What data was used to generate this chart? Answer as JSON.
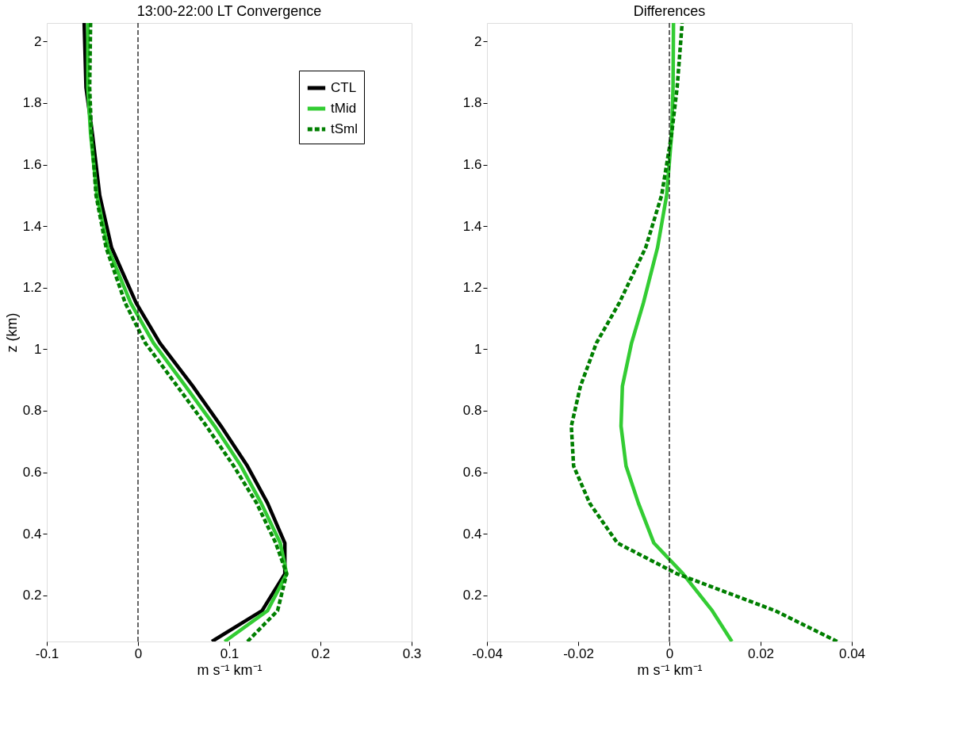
{
  "chart_data": [
    {
      "type": "line",
      "title": "13:00-22:00 LT  Convergence",
      "xlabel": "m s⁻¹ km⁻¹",
      "ylabel": "z (km)",
      "xlim": [
        -0.1,
        0.3
      ],
      "xticks": [
        -0.1,
        0,
        0.1,
        0.2,
        0.3
      ],
      "ylim": [
        0.05,
        2.06
      ],
      "yticks": [
        0.2,
        0.4,
        0.6,
        0.8,
        1,
        1.2,
        1.4,
        1.6,
        1.8,
        2
      ],
      "grid": false,
      "legend": "top right",
      "marker": "none",
      "ref_lines": [
        {
          "axis": "x",
          "value": 0,
          "color": "#000000",
          "line_style": "dashed"
        }
      ],
      "series": [
        {
          "name": "CTL",
          "color": "#000000",
          "line_style": "solid",
          "x": [
            0.081,
            0.136,
            0.161,
            0.161,
            0.142,
            0.12,
            0.091,
            0.06,
            0.024,
            -0.002,
            -0.029,
            -0.042,
            -0.05,
            -0.057,
            -0.059
          ],
          "values": [
            0.05,
            0.15,
            0.27,
            0.37,
            0.5,
            0.62,
            0.75,
            0.88,
            1.02,
            1.15,
            1.33,
            1.5,
            1.7,
            1.85,
            2.06
          ]
        },
        {
          "name": "tMid",
          "color": "#33cc33",
          "line_style": "solid",
          "x": [
            0.095,
            0.142,
            0.163,
            0.156,
            0.135,
            0.113,
            0.084,
            0.052,
            0.017,
            -0.008,
            -0.033,
            -0.045,
            -0.052,
            -0.055,
            -0.055
          ],
          "values": [
            0.05,
            0.15,
            0.27,
            0.37,
            0.5,
            0.62,
            0.75,
            0.88,
            1.02,
            1.15,
            1.33,
            1.5,
            1.7,
            1.85,
            2.06
          ]
        },
        {
          "name": "tSml",
          "color": "#007f00",
          "line_style": "dashed",
          "x": [
            0.12,
            0.153,
            0.163,
            0.151,
            0.13,
            0.105,
            0.075,
            0.043,
            0.008,
            -0.014,
            -0.035,
            -0.046,
            -0.051,
            -0.053,
            -0.052
          ],
          "values": [
            0.05,
            0.15,
            0.27,
            0.37,
            0.5,
            0.62,
            0.75,
            0.88,
            1.02,
            1.15,
            1.33,
            1.5,
            1.7,
            1.85,
            2.06
          ]
        }
      ]
    },
    {
      "type": "line",
      "title": "Differences",
      "xlabel": "m s⁻¹ km⁻¹",
      "xlim": [
        -0.04,
        0.04
      ],
      "xticks": [
        -0.04,
        -0.02,
        0,
        0.02,
        0.04
      ],
      "ylim": [
        0.05,
        2.06
      ],
      "yticks": [
        0.2,
        0.4,
        0.6,
        0.8,
        1,
        1.2,
        1.4,
        1.6,
        1.8,
        2
      ],
      "grid": false,
      "marker": "none",
      "ref_lines": [
        {
          "axis": "x",
          "value": 0,
          "color": "#000000",
          "line_style": "dashed"
        }
      ],
      "series": [
        {
          "color": "#33cc33",
          "line_style": "solid",
          "x": [
            0.0137,
            0.0094,
            0.003,
            -0.0034,
            -0.0068,
            -0.0095,
            -0.0106,
            -0.0103,
            -0.0083,
            -0.0057,
            -0.0026,
            -0.0006,
            0.0005,
            0.0008,
            0.0009
          ],
          "values": [
            0.05,
            0.15,
            0.27,
            0.37,
            0.5,
            0.62,
            0.75,
            0.88,
            1.02,
            1.15,
            1.33,
            1.5,
            1.7,
            1.85,
            2.06
          ]
        },
        {
          "color": "#007f00",
          "line_style": "dashed",
          "x": [
            0.0368,
            0.0232,
            0.0017,
            -0.0114,
            -0.0175,
            -0.021,
            -0.0215,
            -0.0195,
            -0.016,
            -0.011,
            -0.0052,
            -0.0017,
            0.0005,
            0.0017,
            0.0028
          ],
          "values": [
            0.05,
            0.15,
            0.27,
            0.37,
            0.5,
            0.62,
            0.75,
            0.88,
            1.02,
            1.15,
            1.33,
            1.5,
            1.7,
            1.85,
            2.06
          ]
        }
      ]
    }
  ]
}
